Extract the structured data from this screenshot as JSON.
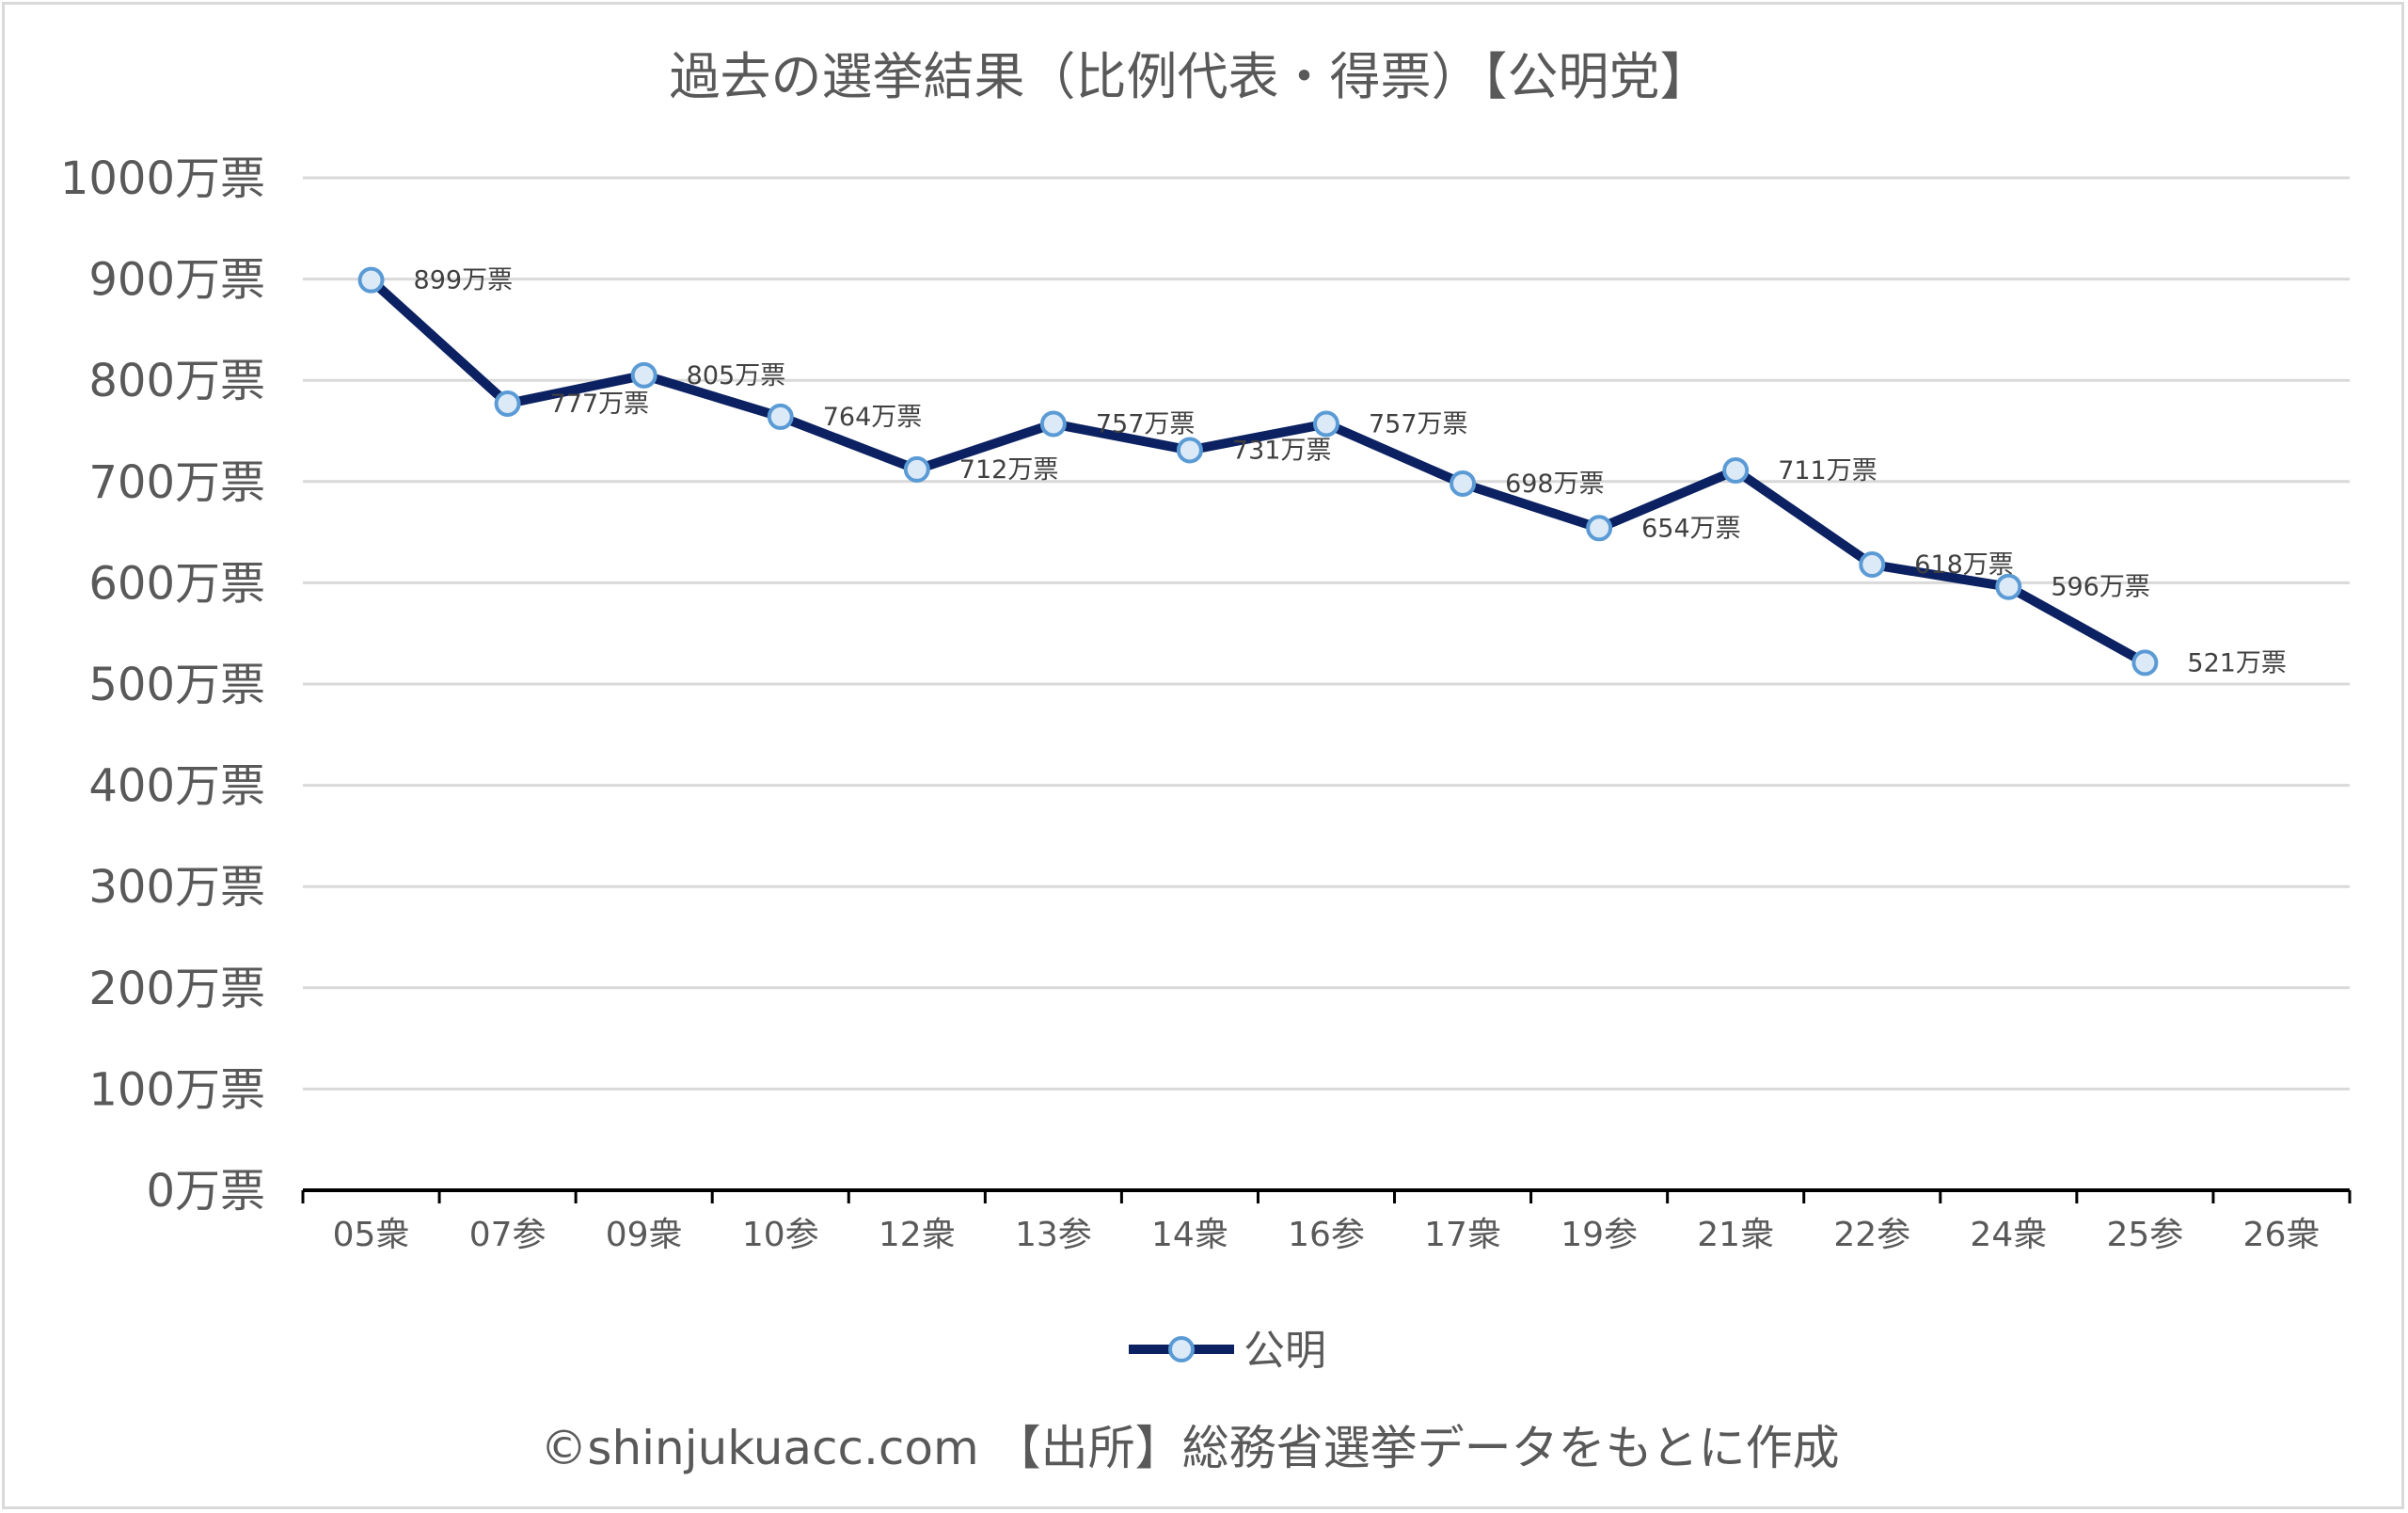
{
  "chart_data": {
    "type": "line",
    "title": "過去の選挙結果（比例代表・得票）【公明党】",
    "xlabel": "",
    "ylabel": "",
    "categories": [
      "05衆",
      "07参",
      "09衆",
      "10参",
      "12衆",
      "13参",
      "14衆",
      "16参",
      "17衆",
      "19参",
      "21衆",
      "22参",
      "24衆",
      "25参",
      "26衆"
    ],
    "series": [
      {
        "name": "公明",
        "values": [
          899,
          777,
          805,
          764,
          712,
          757,
          731,
          757,
          698,
          654,
          711,
          618,
          596,
          521,
          null
        ],
        "data_labels": [
          "899万票",
          "777万票",
          "805万票",
          "764万票",
          "712万票",
          "757万票",
          "731万票",
          "757万票",
          "698万票",
          "654万票",
          "711万票",
          "618万票",
          "596万票",
          "521万票"
        ]
      }
    ],
    "ylim": [
      0,
      1000
    ],
    "yticks": [
      0,
      100,
      200,
      300,
      400,
      500,
      600,
      700,
      800,
      900,
      1000
    ],
    "ytick_labels": [
      "0万票",
      "100万票",
      "200万票",
      "300万票",
      "400万票",
      "500万票",
      "600万票",
      "700万票",
      "800万票",
      "900万票",
      "1000万票"
    ],
    "grid": true,
    "legend_position": "bottom",
    "colors": {
      "line": "#0b2161",
      "marker_fill": "#dce9f7",
      "marker_edge": "#5b9bd5",
      "grid": "#d9d9d9",
      "text": "#595959"
    }
  },
  "footer": "©shinjukuacc.com 【出所】総務省選挙データをもとに作成"
}
